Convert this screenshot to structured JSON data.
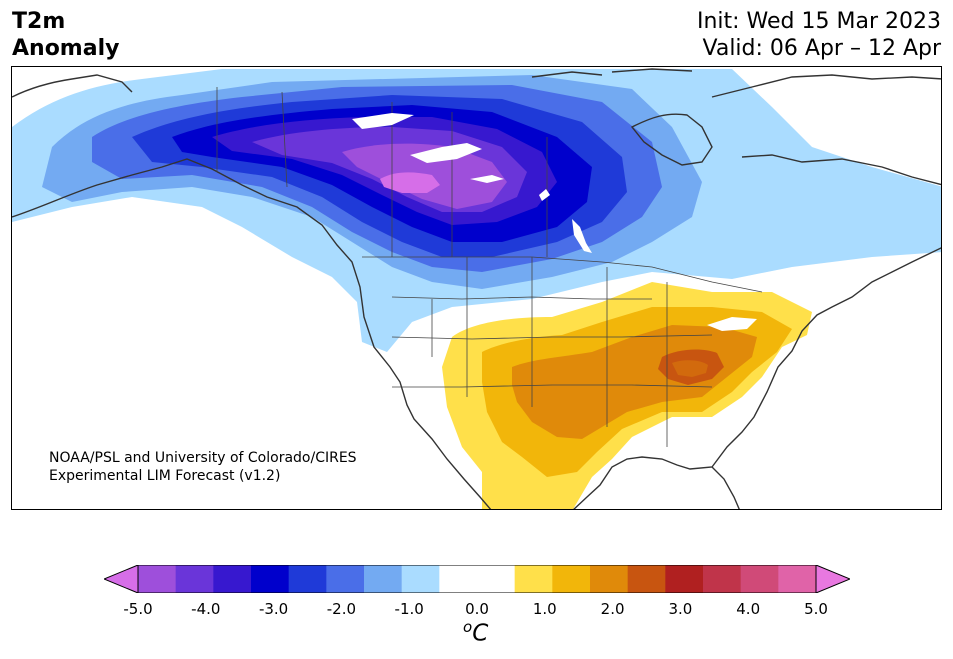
{
  "header": {
    "title_line1": "T2m",
    "title_line2": "Anomaly",
    "init_text": "Init: Wed 15 Mar 2023",
    "valid_text": "Valid: 06 Apr – 12 Apr"
  },
  "credit": {
    "line1": "NOAA/PSL and University of Colorado/CIRES",
    "line2": "Experimental LIM Forecast (v1.2)"
  },
  "colorbar": {
    "colors": [
      "#d66ee8",
      "#9e4fdb",
      "#6a35d9",
      "#3718cf",
      "#0000cc",
      "#1f3ad8",
      "#4a6ee8",
      "#73aaf2",
      "#aadcff",
      "#ffffff",
      "#ffffff",
      "#ffe04a",
      "#f2b60a",
      "#e08a0a",
      "#c85510",
      "#b02020",
      "#c0344a",
      "#d04a78",
      "#e063a8",
      "#e878e0"
    ],
    "tick_labels": [
      "-5.0",
      "-4.0",
      "-3.0",
      "-2.0",
      "-1.0",
      "0.0",
      "1.0",
      "2.0",
      "3.0",
      "4.0",
      "5.0"
    ],
    "unit_base": "C",
    "unit_sup": "o"
  }
}
